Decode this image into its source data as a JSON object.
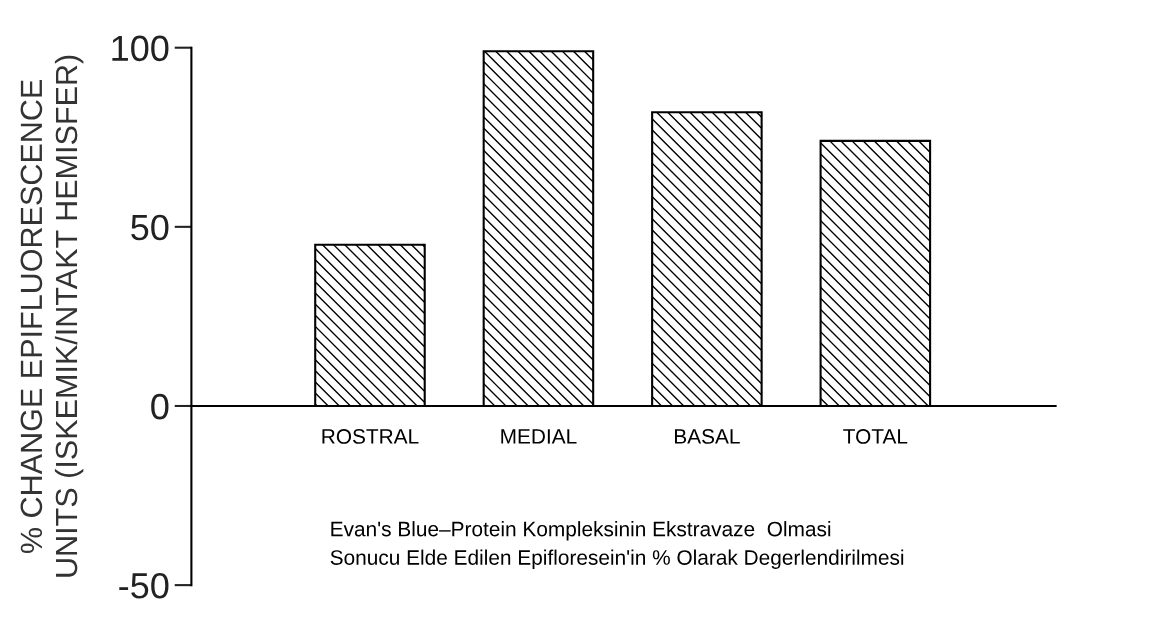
{
  "chart_data": {
    "type": "bar",
    "ylabel": "% CHANGE EPIFLUORESCENCE\nUNITS (ISKEMIK/INTAKT HEMISFER)",
    "categories": [
      "ROSTRAL",
      "MEDIAL",
      "BASAL",
      "TOTAL"
    ],
    "values": [
      45,
      99,
      82,
      74
    ],
    "color": "#000000",
    "ylim": [
      -50,
      100
    ],
    "yticks": [
      -50,
      0,
      50,
      100
    ],
    "grid": false,
    "legend": false,
    "annotations": [
      "Evan's Blue–Protein Kompleksinin Ekstravaze  Olmasi\nSonucu Elde Edilen Epifloresein'in % Olarak Degerlendirilmesi"
    ]
  }
}
